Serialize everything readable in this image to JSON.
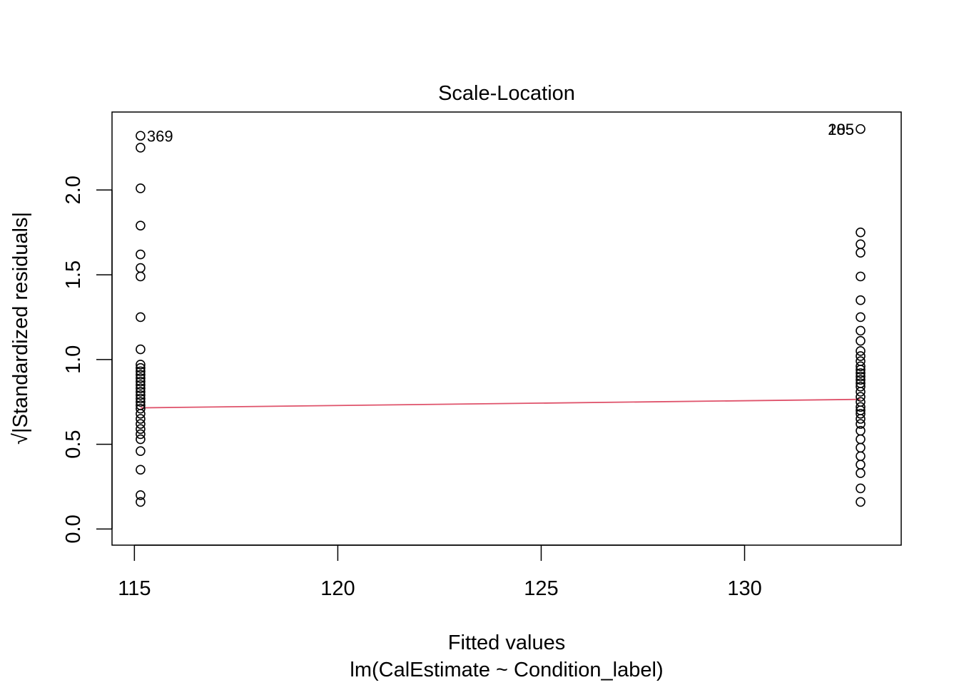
{
  "chart_data": {
    "type": "scatter",
    "title": "Scale-Location",
    "xlabel": "Fitted values",
    "xsublabel": "lm(CalEstimate ~ Condition_label)",
    "ylabel": "√|Standardized residuals|",
    "xlim": [
      114.45,
      133.85
    ],
    "ylim": [
      -0.095,
      2.46
    ],
    "x_ticks": [
      115,
      120,
      125,
      130
    ],
    "y_ticks": [
      0.0,
      0.5,
      1.0,
      1.5,
      2.0
    ],
    "x_tick_labels": [
      "115",
      "120",
      "125",
      "130"
    ],
    "y_tick_labels": [
      "0.0",
      "0.5",
      "1.0",
      "1.5",
      "2.0"
    ],
    "grid": false,
    "point_color": "#000000",
    "smooth_color": "#DF536B",
    "series": [
      {
        "x_value": 115.15,
        "values": [
          2.32,
          2.25,
          2.01,
          1.79,
          1.62,
          1.54,
          1.49,
          1.25,
          1.06,
          0.97,
          0.95,
          0.93,
          0.91,
          0.89,
          0.87,
          0.85,
          0.83,
          0.81,
          0.79,
          0.77,
          0.75,
          0.73,
          0.71,
          0.68,
          0.65,
          0.62,
          0.59,
          0.56,
          0.53,
          0.46,
          0.35,
          0.2,
          0.16
        ]
      },
      {
        "x_value": 132.85,
        "values": [
          2.36,
          1.75,
          1.68,
          1.63,
          1.49,
          1.35,
          1.25,
          1.17,
          1.11,
          1.05,
          1.02,
          0.99,
          0.96,
          0.94,
          0.92,
          0.9,
          0.88,
          0.86,
          0.84,
          0.81,
          0.78,
          0.75,
          0.72,
          0.7,
          0.68,
          0.65,
          0.62,
          0.58,
          0.53,
          0.48,
          0.43,
          0.38,
          0.33,
          0.24,
          0.16
        ]
      }
    ],
    "smooth_line": {
      "x": [
        115.15,
        132.85
      ],
      "y": [
        0.715,
        0.765
      ]
    },
    "point_labels": [
      {
        "text": "369",
        "x": 115.15,
        "y": 2.32,
        "side": "right"
      },
      {
        "text": "285",
        "x": 132.85,
        "y": 2.36,
        "side": "left"
      },
      {
        "text": "105",
        "x": 132.85,
        "y": 2.36,
        "side": "left"
      }
    ]
  }
}
